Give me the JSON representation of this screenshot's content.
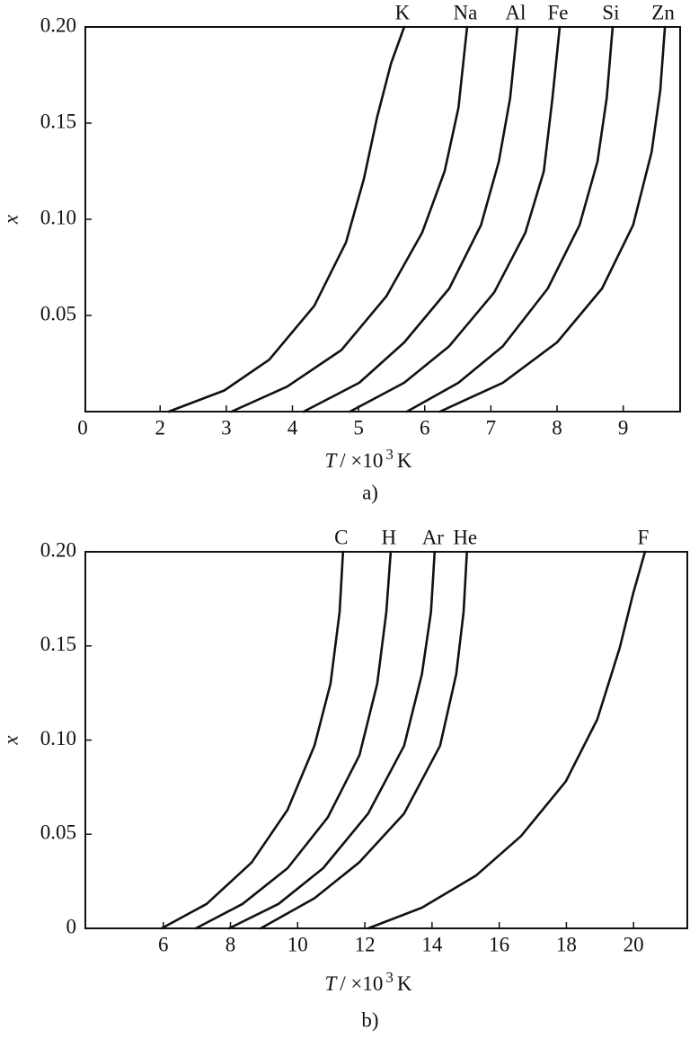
{
  "chart_data": [
    {
      "type": "line",
      "origin_label": "0",
      "y_label": "x",
      "x_label_symbol": "T",
      "x_label_unit": "/ ×10",
      "x_label_exponent": "3",
      "x_label_unit_end": "K",
      "caption": "a)",
      "xlim": [
        0.87,
        9.86
      ],
      "xticks": [
        2,
        3,
        4,
        5,
        6,
        7,
        8,
        9
      ],
      "ylim": [
        0,
        0.2
      ],
      "yticks": [
        0.05,
        {
          "value": 0.1,
          "label": "0.10"
        },
        0.15,
        {
          "value": 0.2,
          "label": "0.20"
        }
      ],
      "series": [
        {
          "name": "K",
          "color": "#111111",
          "x": [
            2.13,
            2.97,
            3.65,
            4.33,
            4.81,
            5.08,
            5.28,
            5.49,
            5.69
          ],
          "values": [
            0,
            0.011,
            0.027,
            0.055,
            0.088,
            0.121,
            0.153,
            0.181,
            0.2
          ]
        },
        {
          "name": "Na",
          "color": "#111111",
          "x": [
            3.08,
            3.92,
            4.74,
            5.42,
            5.96,
            6.3,
            6.51,
            6.64
          ],
          "values": [
            0,
            0.013,
            0.032,
            0.06,
            0.093,
            0.125,
            0.158,
            0.2
          ]
        },
        {
          "name": "Al",
          "color": "#111111",
          "x": [
            4.17,
            5.01,
            5.69,
            6.37,
            6.85,
            7.12,
            7.29,
            7.4
          ],
          "values": [
            0,
            0.015,
            0.036,
            0.064,
            0.097,
            0.13,
            0.163,
            0.2
          ]
        },
        {
          "name": "Fe",
          "color": "#111111",
          "x": [
            4.87,
            5.69,
            6.37,
            7.05,
            7.52,
            7.8,
            7.93,
            8.04
          ],
          "values": [
            0,
            0.015,
            0.034,
            0.062,
            0.093,
            0.125,
            0.163,
            0.2
          ]
        },
        {
          "name": "Si",
          "color": "#111111",
          "x": [
            5.73,
            6.51,
            7.18,
            7.86,
            8.34,
            8.61,
            8.75,
            8.84
          ],
          "values": [
            0,
            0.015,
            0.034,
            0.064,
            0.097,
            0.13,
            0.163,
            0.2
          ]
        },
        {
          "name": "Zn",
          "color": "#111111",
          "x": [
            6.23,
            7.18,
            8.0,
            8.68,
            9.15,
            9.43,
            9.56,
            9.63
          ],
          "values": [
            0,
            0.015,
            0.036,
            0.064,
            0.097,
            0.135,
            0.167,
            0.2
          ]
        }
      ]
    },
    {
      "type": "line",
      "y_label": "x",
      "x_label_symbol": "T",
      "x_label_unit": "/ ×10",
      "x_label_exponent": "3",
      "x_label_unit_end": "K",
      "caption": "b)",
      "xlim": [
        3.68,
        21.6
      ],
      "xticks": [
        6,
        8,
        10,
        12,
        14,
        16,
        18,
        20
      ],
      "ylim": [
        0,
        0.2
      ],
      "yticks": [
        0,
        0.05,
        {
          "value": 0.1,
          "label": "0.10"
        },
        0.15,
        {
          "value": 0.2,
          "label": "0.20"
        }
      ],
      "series": [
        {
          "name": "C",
          "color": "#111111",
          "x": [
            5.95,
            7.29,
            8.63,
            9.7,
            10.5,
            10.98,
            11.25,
            11.35
          ],
          "values": [
            0,
            0.013,
            0.035,
            0.063,
            0.097,
            0.13,
            0.168,
            0.2
          ]
        },
        {
          "name": "H",
          "color": "#111111",
          "x": [
            6.97,
            8.36,
            9.7,
            10.9,
            11.84,
            12.37,
            12.64,
            12.77
          ],
          "values": [
            0,
            0.013,
            0.032,
            0.059,
            0.092,
            0.13,
            0.168,
            0.2
          ]
        },
        {
          "name": "Ar",
          "color": "#111111",
          "x": [
            7.96,
            9.43,
            10.76,
            12.1,
            13.17,
            13.7,
            13.97,
            14.08
          ],
          "values": [
            0,
            0.013,
            0.032,
            0.061,
            0.097,
            0.135,
            0.168,
            0.2
          ]
        },
        {
          "name": "He",
          "color": "#111111",
          "x": [
            8.9,
            10.5,
            11.83,
            13.17,
            14.24,
            14.72,
            14.94,
            15.04
          ],
          "values": [
            0,
            0.016,
            0.035,
            0.061,
            0.097,
            0.135,
            0.168,
            0.2
          ]
        },
        {
          "name": "F",
          "color": "#111111",
          "x": [
            12.1,
            13.7,
            15.31,
            16.65,
            17.98,
            18.92,
            19.59,
            19.99,
            20.34
          ],
          "values": [
            0,
            0.011,
            0.028,
            0.049,
            0.078,
            0.111,
            0.149,
            0.178,
            0.2
          ]
        }
      ]
    }
  ]
}
